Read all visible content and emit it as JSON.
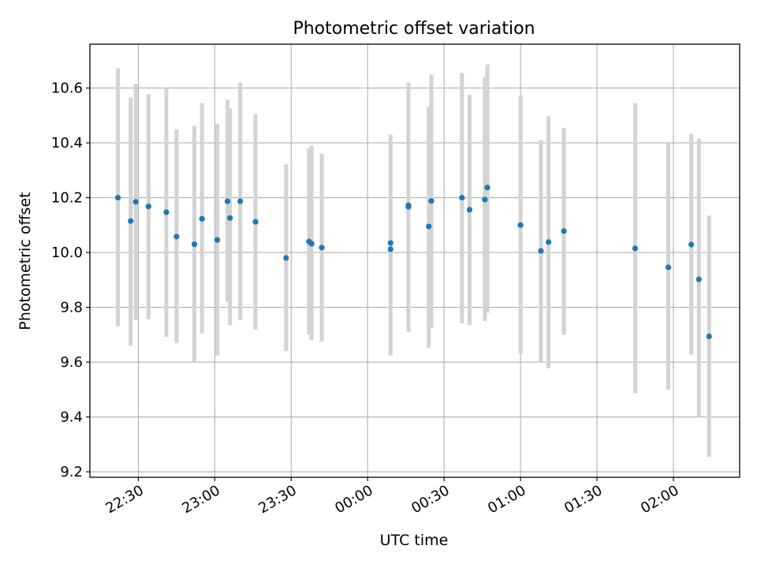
{
  "chart_data": {
    "type": "scatter",
    "title": "Photometric offset variation",
    "xlabel": "UTC time",
    "ylabel": "Photometric offset",
    "x_axis_kind": "time",
    "x_start_time": "22:11",
    "xlim": [
      "22:11",
      "02:26"
    ],
    "ylim": [
      9.18,
      10.76
    ],
    "x_ticks": [
      "22:30",
      "23:00",
      "23:30",
      "00:00",
      "00:30",
      "01:00",
      "01:30",
      "02:00"
    ],
    "y_ticks": [
      9.2,
      9.4,
      9.6,
      9.8,
      10.0,
      10.2,
      10.4,
      10.6
    ],
    "y_tick_labels": [
      "9.2",
      "9.4",
      "9.6",
      "9.8",
      "10.0",
      "10.2",
      "10.4",
      "10.6"
    ],
    "grid": true,
    "colors": {
      "points": "#1f77b4",
      "errorbars": "#d3d3d3",
      "grid": "#b0b0b0"
    },
    "series": [
      {
        "x": [
          "22:22",
          "22:27",
          "22:29",
          "22:34",
          "22:41",
          "22:45",
          "22:52",
          "22:55",
          "23:01",
          "23:05",
          "23:06",
          "23:10",
          "23:16",
          "23:28",
          "23:37",
          "23:38",
          "23:42",
          "00:09",
          "00:09",
          "00:16",
          "00:16",
          "00:24",
          "00:25",
          "00:37",
          "00:40",
          "00:46",
          "00:47",
          "01:00",
          "01:08",
          "01:11",
          "01:17",
          "01:45",
          "01:58",
          "02:07",
          "02:10",
          "02:14"
        ],
        "y": [
          10.2,
          10.115,
          10.185,
          10.168,
          10.147,
          10.058,
          10.03,
          10.123,
          10.046,
          10.187,
          10.126,
          10.187,
          10.112,
          9.98,
          10.04,
          10.032,
          10.018,
          10.035,
          10.012,
          10.172,
          10.167,
          10.095,
          10.188,
          10.2,
          10.156,
          10.193,
          10.237,
          10.1,
          10.006,
          10.038,
          10.078,
          10.015,
          9.946,
          10.029,
          9.902,
          9.694
        ],
        "yerr_low": [
          9.73,
          9.66,
          9.755,
          9.757,
          9.692,
          9.67,
          9.6,
          9.705,
          9.625,
          9.82,
          9.735,
          9.755,
          9.718,
          9.64,
          9.7,
          9.68,
          9.675,
          9.625,
          null,
          9.71,
          null,
          9.652,
          9.725,
          9.742,
          9.735,
          9.75,
          9.78,
          9.63,
          9.6,
          9.578,
          9.7,
          9.487,
          9.5,
          9.628,
          9.4,
          9.255
        ],
        "yerr_high": [
          10.672,
          10.565,
          10.615,
          10.578,
          10.6,
          10.45,
          10.462,
          10.545,
          10.47,
          10.558,
          10.525,
          10.62,
          10.505,
          10.322,
          10.38,
          10.39,
          10.36,
          10.43,
          null,
          10.62,
          null,
          10.532,
          10.648,
          10.655,
          10.575,
          10.64,
          10.686,
          10.573,
          10.41,
          10.497,
          10.455,
          10.545,
          10.4,
          10.433,
          10.415,
          10.135
        ]
      }
    ]
  }
}
